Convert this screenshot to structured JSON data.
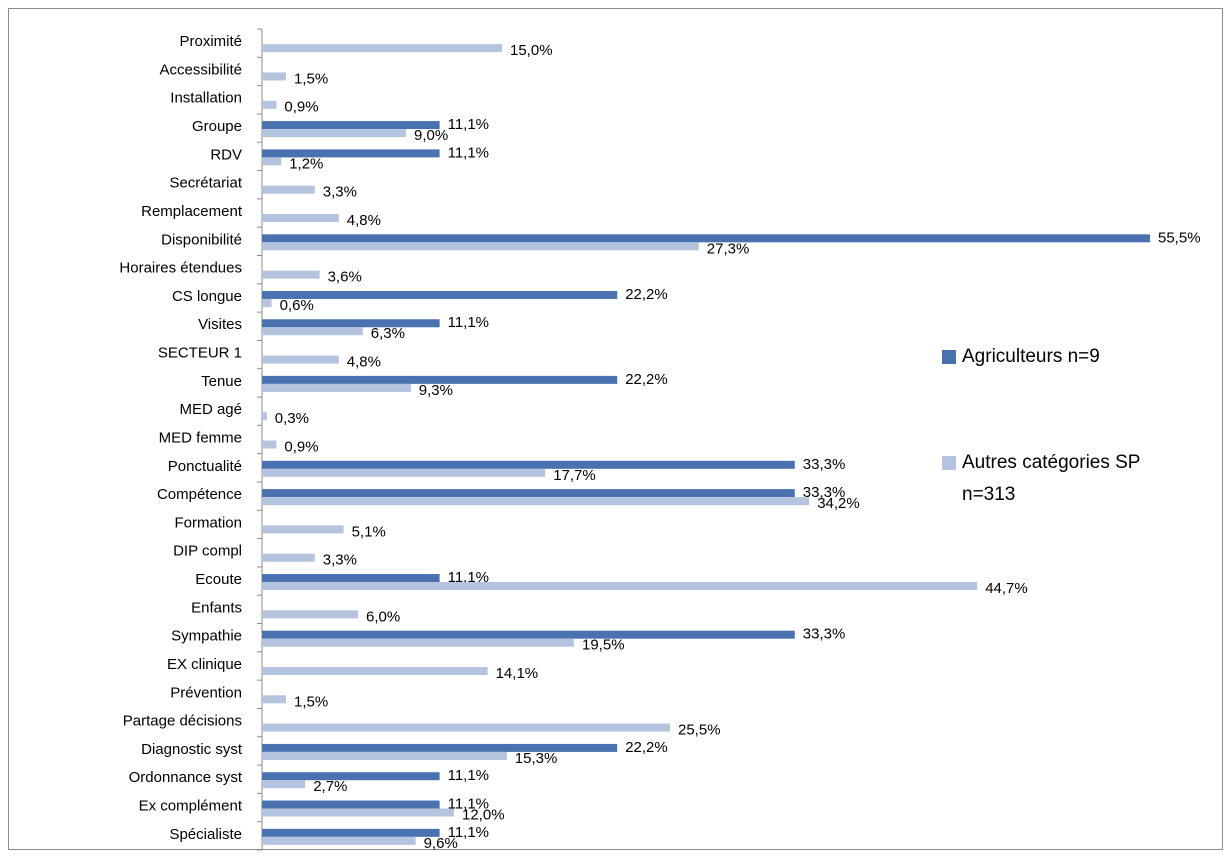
{
  "chart_data": {
    "type": "bar",
    "orientation": "horizontal",
    "categories": [
      "Proximité",
      "Accessibilité",
      "Installation",
      "Groupe",
      "RDV",
      "Secrétariat",
      "Remplacement",
      "Disponibilité",
      "Horaires étendues",
      "CS longue",
      "Visites",
      "SECTEUR 1",
      "Tenue",
      "MED agé",
      "MED femme",
      "Ponctualité",
      "Compétence",
      "Formation",
      "DIP compl",
      "Ecoute",
      "Enfants",
      "Sympathie",
      "EX clinique",
      "Prévention",
      "Partage décisions",
      "Diagnostic syst",
      "Ordonnance syst",
      "Ex complément",
      "Spécialiste"
    ],
    "series": [
      {
        "name": "Agriculteurs n=9",
        "color": "#4a72b0",
        "values": [
          null,
          null,
          null,
          11.1,
          11.1,
          null,
          null,
          55.5,
          null,
          22.2,
          11.1,
          null,
          22.2,
          null,
          null,
          33.3,
          33.3,
          null,
          null,
          11.1,
          null,
          33.3,
          null,
          null,
          null,
          22.2,
          11.1,
          11.1,
          11.1
        ],
        "value_labels": [
          null,
          null,
          null,
          "11,1%",
          "11,1%",
          null,
          null,
          "55,5%",
          null,
          "22,2%",
          "11,1%",
          null,
          "22,2%",
          null,
          null,
          "33,3%",
          "33,3%",
          null,
          null,
          "11,1%",
          null,
          "33,3%",
          null,
          null,
          null,
          "22,2%",
          "11,1%",
          "11,1%",
          "11,1%"
        ]
      },
      {
        "name": "Autres catégories SP n=313",
        "color": "#b4c3de",
        "values": [
          15.0,
          1.5,
          0.9,
          9.0,
          1.2,
          3.3,
          4.8,
          27.3,
          3.6,
          0.6,
          6.3,
          4.8,
          9.3,
          0.3,
          0.9,
          17.7,
          34.2,
          5.1,
          3.3,
          44.7,
          6.0,
          19.5,
          14.1,
          1.5,
          25.5,
          15.3,
          2.7,
          12.0,
          9.6
        ],
        "value_labels": [
          "15,0%",
          "1,5%",
          "0,9%",
          "9,0%",
          "1,2%",
          "3,3%",
          "4,8%",
          "27,3%",
          "3,6%",
          "0,6%",
          "6,3%",
          "4,8%",
          "9,3%",
          "0,3%",
          "0,9%",
          "17,7%",
          "34,2%",
          "5,1%",
          "3,3%",
          "44,7%",
          "6,0%",
          "19,5%",
          "14,1%",
          "1,5%",
          "25,5%",
          "15,3%",
          "2,7%",
          "12,0%",
          "9,6%"
        ]
      }
    ],
    "xlim": [
      0,
      60
    ],
    "legend": "right"
  }
}
